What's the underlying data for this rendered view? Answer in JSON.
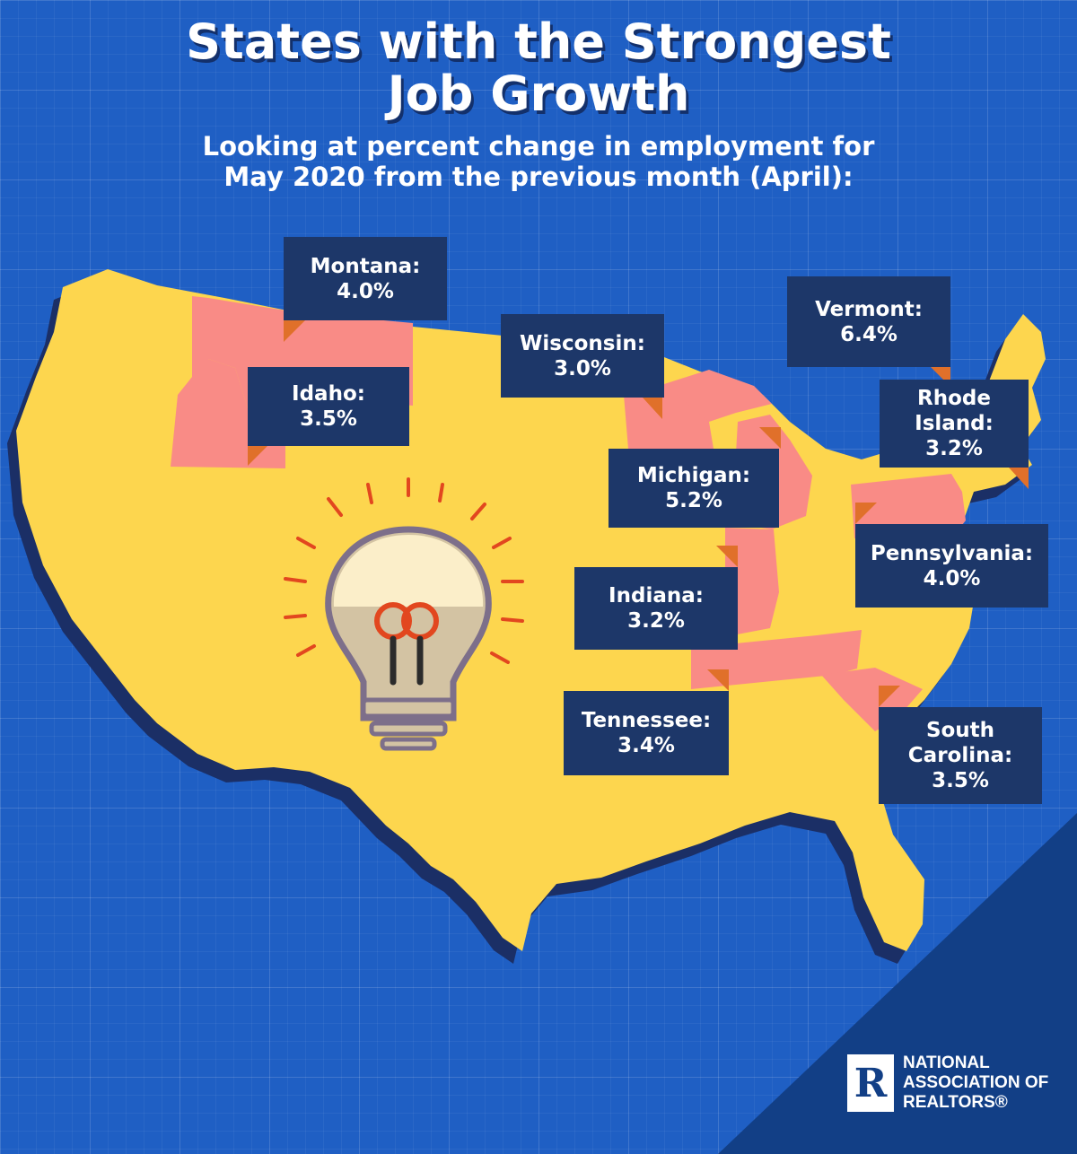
{
  "header": {
    "title": "States with the Strongest Job Growth",
    "subtitle_line1": "Looking at percent change in employment for",
    "subtitle_line2": "May 2020 from the previous month (April):"
  },
  "colors": {
    "background": "#1f5fc4",
    "map_fill": "#fdd64e",
    "highlight_state": "#f98b86",
    "label_box": "#1d3769",
    "pointer": "#e0702a"
  },
  "states": [
    {
      "state": "Montana",
      "label": "Montana:",
      "value": "4.0%"
    },
    {
      "state": "Idaho",
      "label": "Idaho:",
      "value": "3.5%"
    },
    {
      "state": "Wisconsin",
      "label": "Wisconsin:",
      "value": "3.0%"
    },
    {
      "state": "Vermont",
      "label": "Vermont:",
      "value": "6.4%"
    },
    {
      "state": "Rhode Island",
      "label_line1": "Rhode",
      "label_line2": "Island:",
      "value": "3.2%"
    },
    {
      "state": "Michigan",
      "label": "Michigan:",
      "value": "5.2%"
    },
    {
      "state": "Pennsylvania",
      "label": "Pennsylvania:",
      "value": "4.0%"
    },
    {
      "state": "Indiana",
      "label": "Indiana:",
      "value": "3.2%"
    },
    {
      "state": "Tennessee",
      "label": "Tennessee:",
      "value": "3.4%"
    },
    {
      "state": "South Carolina",
      "label_line1": "South",
      "label_line2": "Carolina:",
      "value": "3.5%"
    }
  ],
  "illustration": "lightbulb-icon",
  "logo": {
    "mark": "R",
    "line1": "NATIONAL",
    "line2": "ASSOCIATION OF",
    "line3": "REALTORS®"
  }
}
